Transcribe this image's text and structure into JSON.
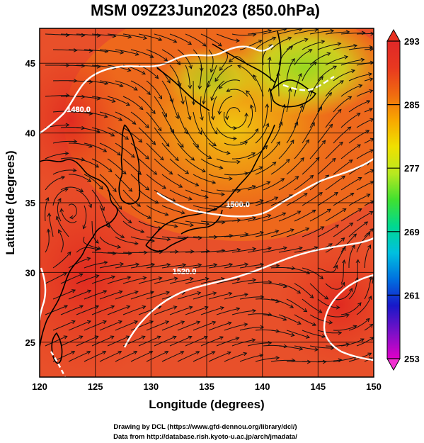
{
  "title": "MSM 09Z23Jun2023 (850.0hPa)",
  "x_axis": {
    "label": "Longitude (degrees)",
    "ticks": [
      "120",
      "125",
      "130",
      "135",
      "140",
      "145",
      "150"
    ],
    "range": [
      120,
      150
    ]
  },
  "y_axis": {
    "label": "Latitude  (degrees)",
    "ticks": [
      "25",
      "30",
      "35",
      "40",
      "45"
    ],
    "range": [
      22.5,
      47.5
    ]
  },
  "colorbar": {
    "ticks": [
      "253",
      "261",
      "269",
      "277",
      "285",
      "293"
    ],
    "range": [
      253,
      293
    ],
    "colors": [
      "#e000c8",
      "#7a10c8",
      "#1818c8",
      "#0070e0",
      "#00c0e0",
      "#00d890",
      "#40e030",
      "#b8e820",
      "#f0e000",
      "#f8a800",
      "#f06a10",
      "#e83820",
      "#e02828"
    ]
  },
  "contours": [
    {
      "label": "1480.0",
      "lon": 123.5,
      "lat": 41.5
    },
    {
      "label": "1500.0",
      "lon": 137.8,
      "lat": 34.7
    },
    {
      "label": "1520.0",
      "lon": 133.0,
      "lat": 29.9
    }
  ],
  "credits": {
    "line1": "Drawing by DCL (https://www.gfd-dennou.org/library/dcl/)",
    "line2": "Data from http://database.rish.kyoto-u.ac.jp/arch/jmadata/"
  },
  "colors": {
    "warm": "#e8381f",
    "mid": "#f08c10",
    "cool": "#a8d820",
    "streamline": "#111111",
    "contour": "#ffffff",
    "coast": "#000000"
  }
}
